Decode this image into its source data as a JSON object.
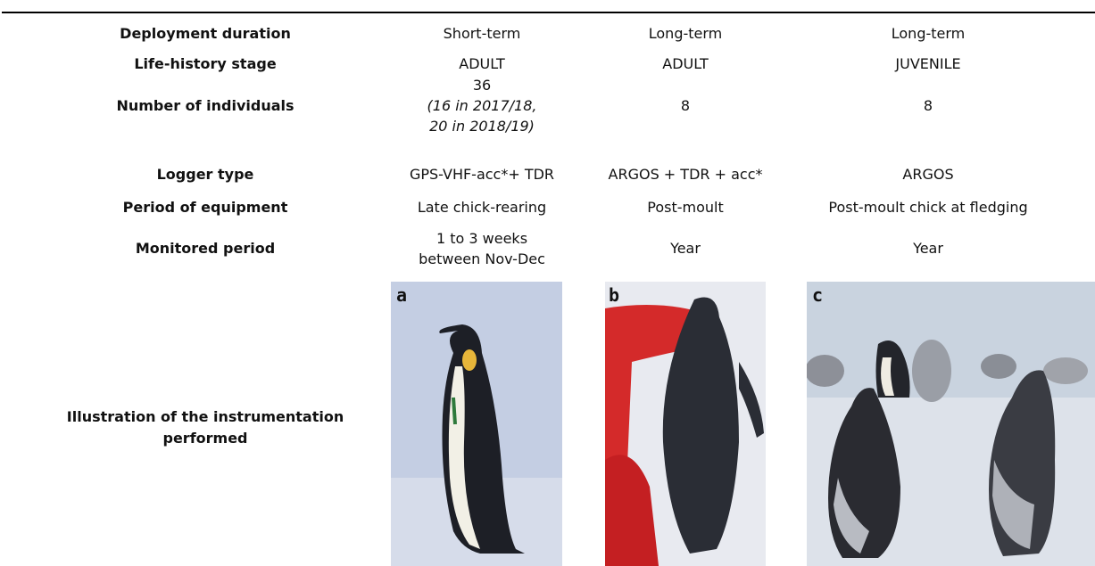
{
  "table": {
    "rows": [
      {
        "label": "Deployment duration",
        "cells": [
          {
            "lines": [
              "Short-term"
            ]
          },
          {
            "lines": [
              "Long-term"
            ]
          },
          {
            "lines": [
              "Long-term"
            ]
          }
        ]
      },
      {
        "label": "Life-history stage",
        "cells": [
          {
            "lines": [
              "ADULT"
            ]
          },
          {
            "lines": [
              "ADULT"
            ]
          },
          {
            "lines": [
              "JUVENILE"
            ]
          }
        ]
      },
      {
        "label": "Number of individuals",
        "cells": [
          {
            "lines": [
              "36"
            ],
            "note": [
              "(16 in 2017/18,",
              "20 in 2018/19)"
            ]
          },
          {
            "lines": [
              "8"
            ]
          },
          {
            "lines": [
              "8"
            ]
          }
        ]
      },
      {
        "label": "Logger type",
        "cells": [
          {
            "lines": [
              "GPS-VHF-acc*+ TDR"
            ]
          },
          {
            "lines": [
              "ARGOS + TDR + acc*"
            ]
          },
          {
            "lines": [
              "ARGOS"
            ]
          }
        ]
      },
      {
        "label": "Period of equipment",
        "cells": [
          {
            "lines": [
              "Late chick-rearing"
            ]
          },
          {
            "lines": [
              "Post-moult"
            ]
          },
          {
            "lines": [
              "Post-moult chick at fledging"
            ]
          }
        ]
      },
      {
        "label": "Monitored period",
        "cells": [
          {
            "lines": [
              "1 to 3 weeks",
              "between Nov-Dec"
            ]
          },
          {
            "lines": [
              "Year"
            ]
          },
          {
            "lines": [
              "Year"
            ]
          }
        ]
      }
    ],
    "illustration": {
      "label": [
        "Illustration of the instrumentation",
        "performed"
      ],
      "panels": [
        "a",
        "b",
        "c"
      ]
    }
  }
}
